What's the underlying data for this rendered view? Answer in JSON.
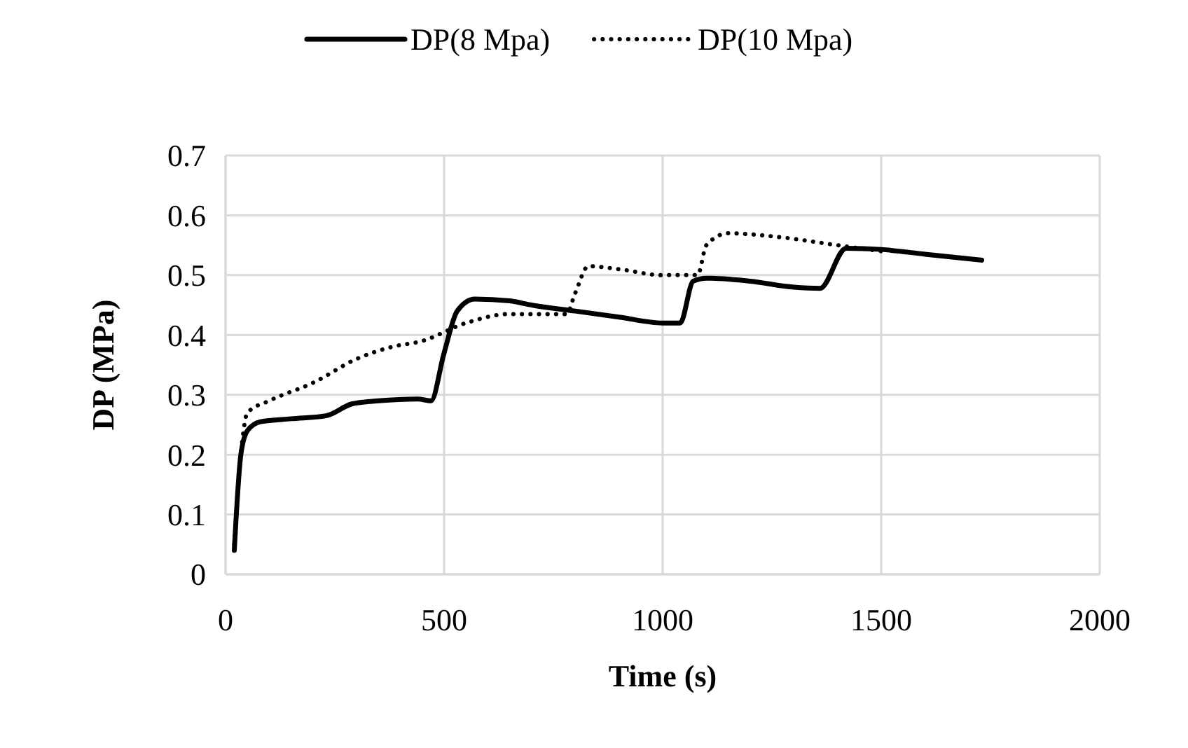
{
  "chart_data": {
    "type": "line",
    "xlabel": "Time (s)",
    "ylabel": "DP (MPa)",
    "xlim": [
      0,
      2000
    ],
    "xticks": [
      0,
      500,
      1000,
      1500,
      2000
    ],
    "ylim": [
      0,
      0.7
    ],
    "yticks": [
      0,
      0.1,
      0.2,
      0.3,
      0.4,
      0.5,
      0.6,
      0.7
    ],
    "grid": true,
    "legend": "top",
    "series": [
      {
        "name": "DP(8 Mpa)",
        "color": "#000000",
        "line_style": "solid",
        "x": [
          20,
          35,
          50,
          80,
          150,
          230,
          290,
          350,
          440,
          470,
          500,
          530,
          570,
          650,
          700,
          800,
          900,
          1000,
          1040,
          1070,
          1100,
          1200,
          1300,
          1360,
          1420,
          1500,
          1600,
          1730
        ],
        "values": [
          0.04,
          0.2,
          0.24,
          0.255,
          0.26,
          0.265,
          0.285,
          0.29,
          0.293,
          0.29,
          0.37,
          0.44,
          0.46,
          0.457,
          0.45,
          0.44,
          0.43,
          0.42,
          0.42,
          0.49,
          0.495,
          0.49,
          0.48,
          0.478,
          0.545,
          0.543,
          0.535,
          0.525
        ]
      },
      {
        "name": "DP(10 Mpa)",
        "color": "#000000",
        "line_style": "dotted",
        "x": [
          20,
          35,
          50,
          100,
          200,
          300,
          380,
          450,
          550,
          650,
          780,
          800,
          830,
          900,
          1000,
          1080,
          1100,
          1150,
          1250,
          1400,
          1500
        ],
        "values": [
          0.05,
          0.2,
          0.27,
          0.29,
          0.32,
          0.36,
          0.38,
          0.39,
          0.42,
          0.435,
          0.435,
          0.47,
          0.515,
          0.51,
          0.5,
          0.5,
          0.55,
          0.57,
          0.565,
          0.55,
          0.54
        ]
      }
    ]
  }
}
